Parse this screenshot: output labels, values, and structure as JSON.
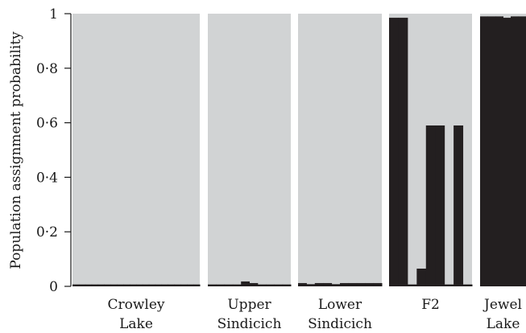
{
  "chart_data": {
    "type": "bar",
    "ylabel": "Population assignment probability",
    "ylim": [
      0,
      1
    ],
    "y_ticks": [
      0,
      0.2,
      0.4,
      0.6,
      0.8,
      1
    ],
    "y_tick_labels": [
      "0",
      "0·2",
      "0·4",
      "0·6",
      "0·8",
      "1"
    ],
    "colors": {
      "background_assignment": "#d1d3d4",
      "jewel_lake_assignment": "#231f20"
    },
    "groups": [
      {
        "label_lines": [
          "Crowley",
          "Lake"
        ],
        "values": [
          0.007,
          0.007,
          0.007,
          0.007,
          0.007,
          0.007,
          0.007,
          0.007,
          0.007,
          0.007,
          0.007,
          0.007,
          0.007,
          0.007,
          0.007,
          0.007,
          0.007,
          0.007,
          0.007,
          0.007
        ]
      },
      {
        "label_lines": [
          "Upper",
          "Sindicich"
        ],
        "values": [
          0.007,
          0.007,
          0.007,
          0.007,
          0.018,
          0.012,
          0.007,
          0.007,
          0.007,
          0.007
        ]
      },
      {
        "label_lines": [
          "Lower",
          "Sindicich"
        ],
        "values": [
          0.012,
          0.008,
          0.012,
          0.012,
          0.008,
          0.012,
          0.012,
          0.012,
          0.012,
          0.012
        ]
      },
      {
        "label_lines": [
          "F2"
        ],
        "values": [
          0.985,
          0.985,
          0.007,
          0.065,
          0.59,
          0.59,
          0.007,
          0.59,
          0.007
        ]
      },
      {
        "label_lines": [
          "Jewel",
          "Lake"
        ],
        "values": [
          0.99,
          0.99,
          0.99,
          0.985,
          0.99,
          0.99
        ]
      }
    ]
  }
}
